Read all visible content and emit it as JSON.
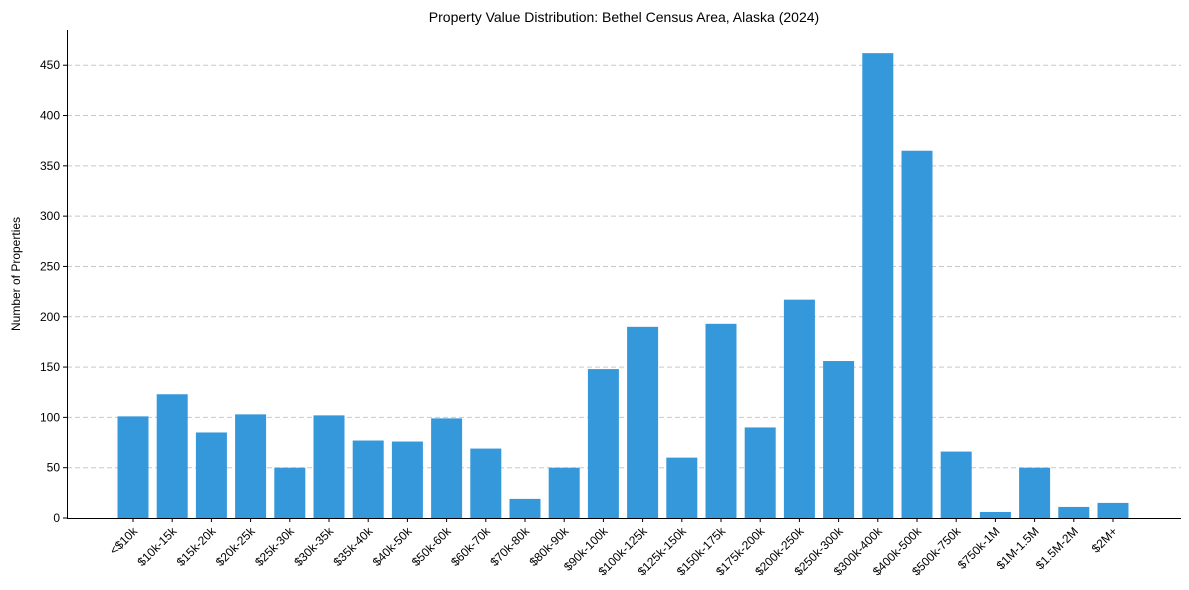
{
  "chart_data": {
    "type": "bar",
    "title": "Property Value Distribution: Bethel Census Area, Alaska (2024)",
    "xlabel": "",
    "ylabel": "Number of Properties",
    "ylim": [
      0,
      485
    ],
    "yticks": [
      0,
      50,
      100,
      150,
      200,
      250,
      300,
      350,
      400,
      450
    ],
    "grid": "y-dashed",
    "bar_color": "#3498db",
    "categories": [
      "<$10k",
      "$10k-15k",
      "$15k-20k",
      "$20k-25k",
      "$25k-30k",
      "$30k-35k",
      "$35k-40k",
      "$40k-50k",
      "$50k-60k",
      "$60k-70k",
      "$70k-80k",
      "$80k-90k",
      "$90k-100k",
      "$100k-125k",
      "$125k-150k",
      "$150k-175k",
      "$175k-200k",
      "$200k-250k",
      "$250k-300k",
      "$300k-400k",
      "$400k-500k",
      "$500k-750k",
      "$750k-1M",
      "$1M-1.5M",
      "$1.5M-2M",
      "$2M+"
    ],
    "values": [
      101,
      123,
      85,
      103,
      50,
      102,
      77,
      76,
      99,
      69,
      19,
      50,
      148,
      190,
      60,
      193,
      90,
      217,
      156,
      462,
      365,
      66,
      6,
      50,
      11,
      15
    ]
  }
}
